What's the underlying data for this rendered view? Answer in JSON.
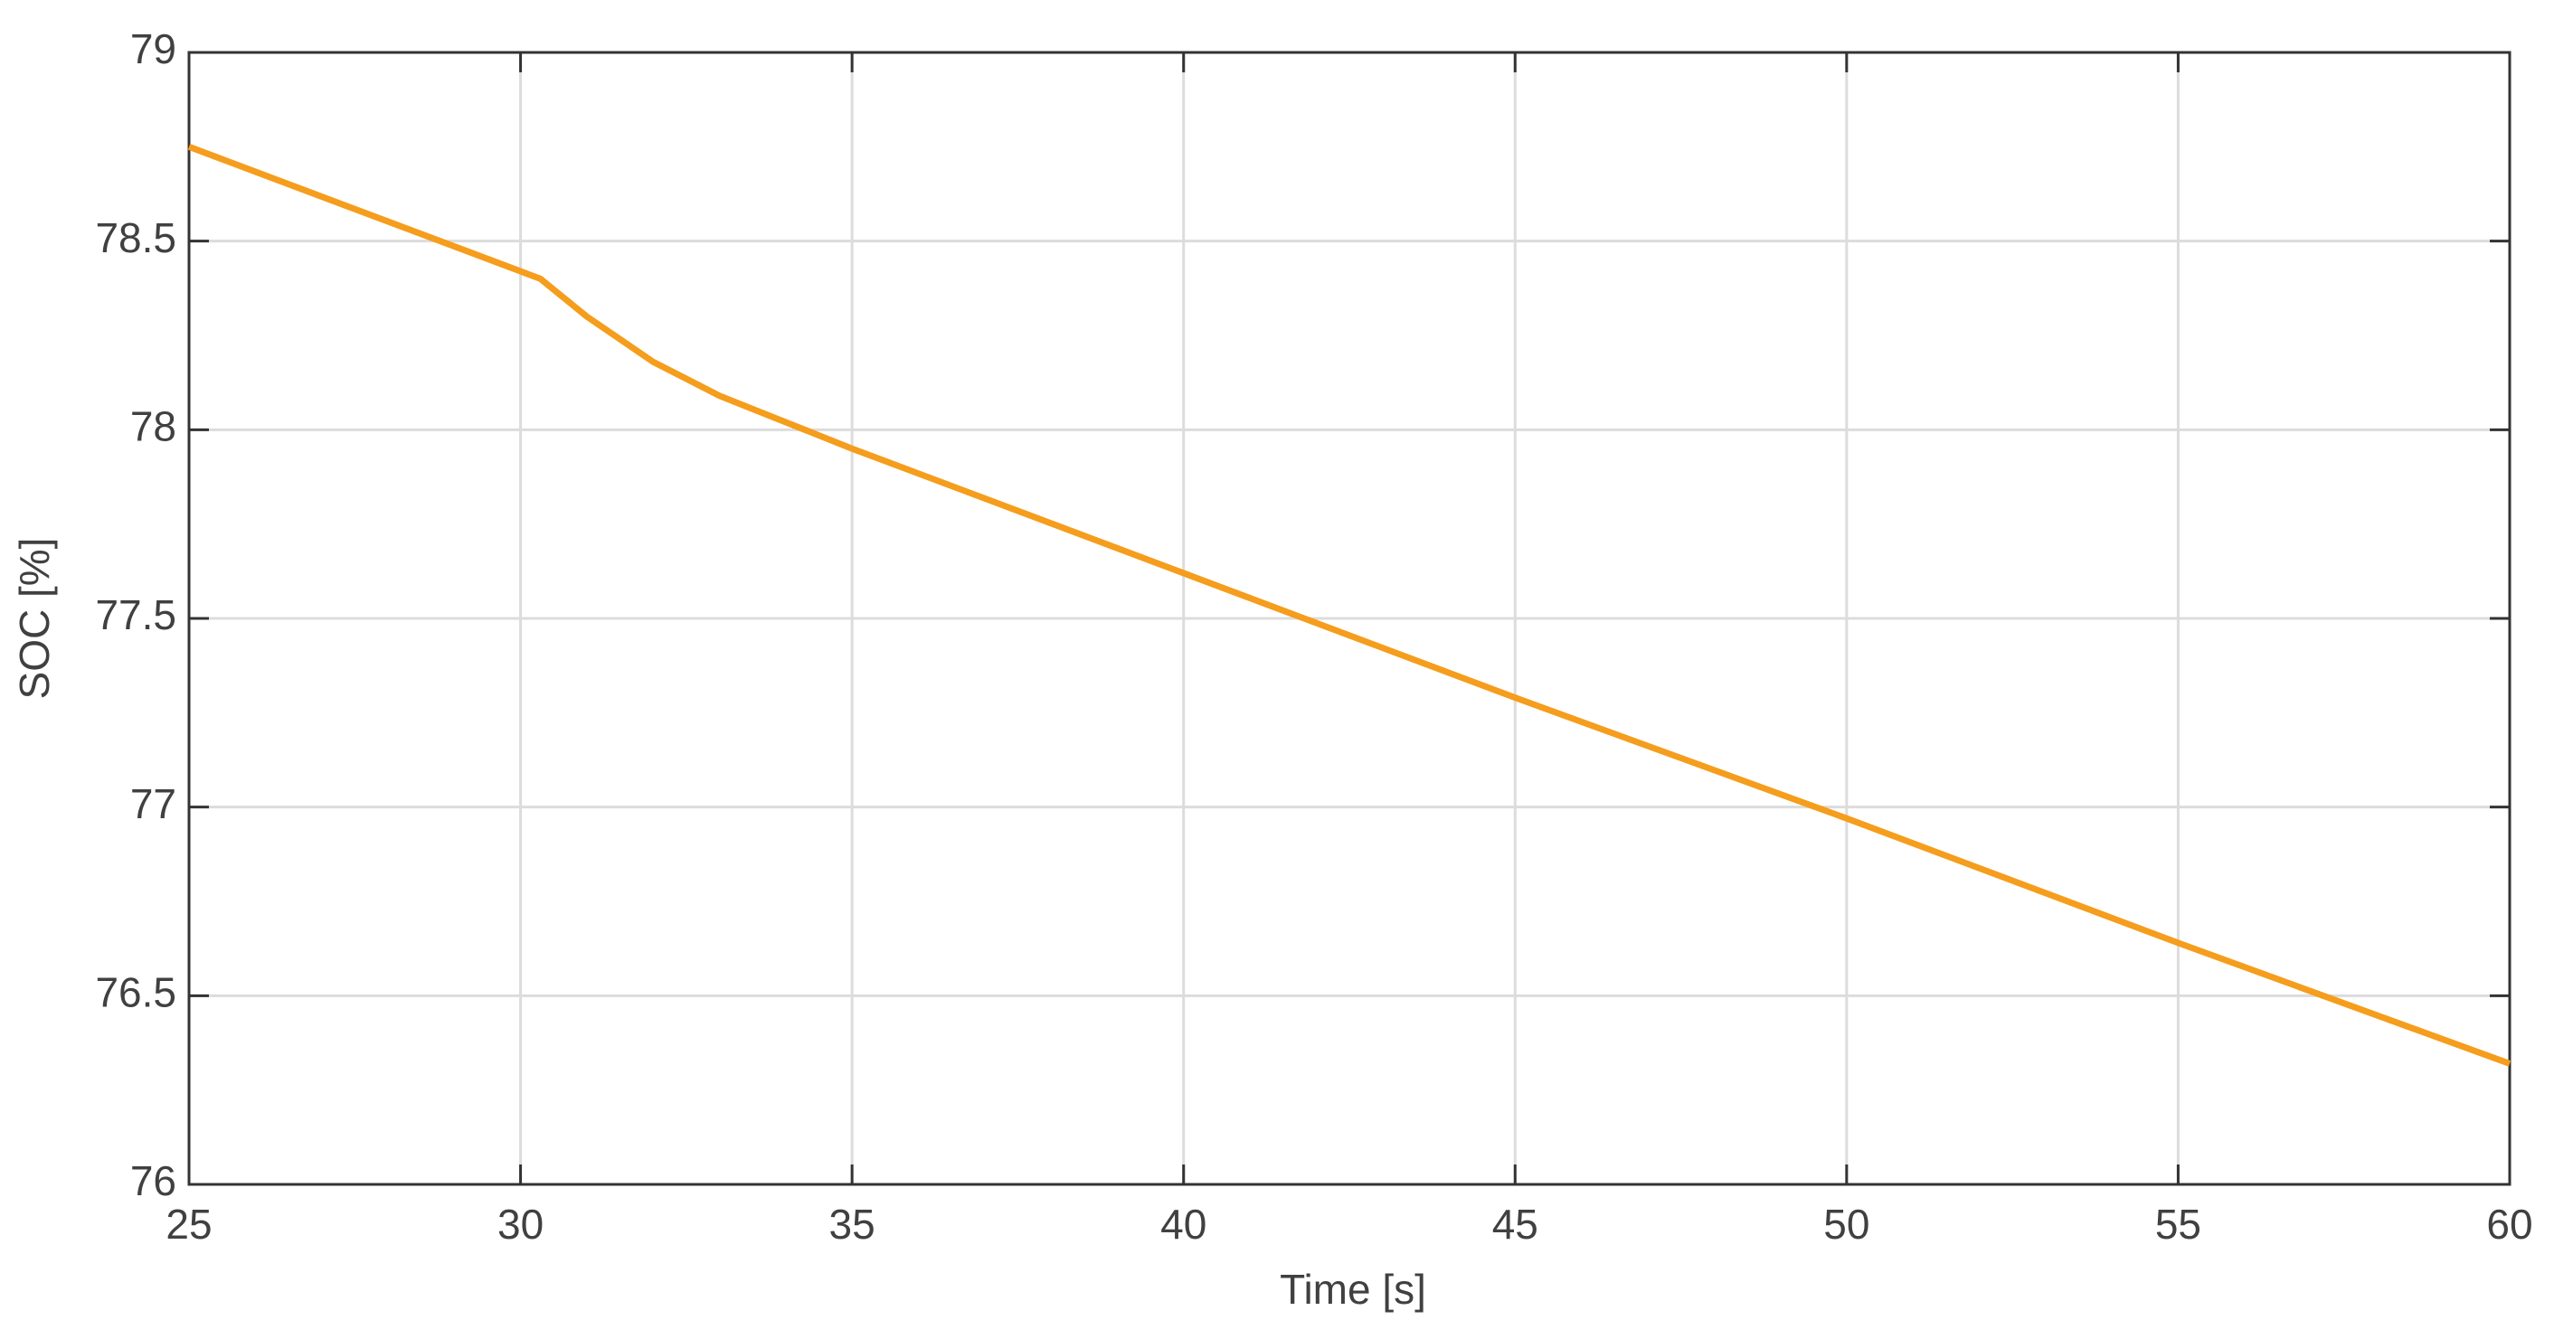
{
  "chart_data": {
    "type": "line",
    "x_label": "Time [s]",
    "y_label": "SOC [%]",
    "x": [
      25,
      30,
      30.3,
      31,
      32,
      33,
      34,
      35,
      40,
      45,
      50,
      55,
      60
    ],
    "values": [
      78.75,
      78.42,
      78.4,
      78.3,
      78.18,
      78.09,
      78.02,
      77.95,
      77.62,
      77.29,
      76.97,
      76.64,
      76.32
    ],
    "color": "#f59d1c",
    "xlim": [
      25,
      60
    ],
    "xticks": [
      25,
      30,
      35,
      40,
      45,
      50,
      55,
      60
    ],
    "ylim": [
      76,
      79
    ],
    "yticks": [
      76,
      76.5,
      77,
      77.5,
      78,
      78.5,
      79
    ],
    "grid": true
  }
}
